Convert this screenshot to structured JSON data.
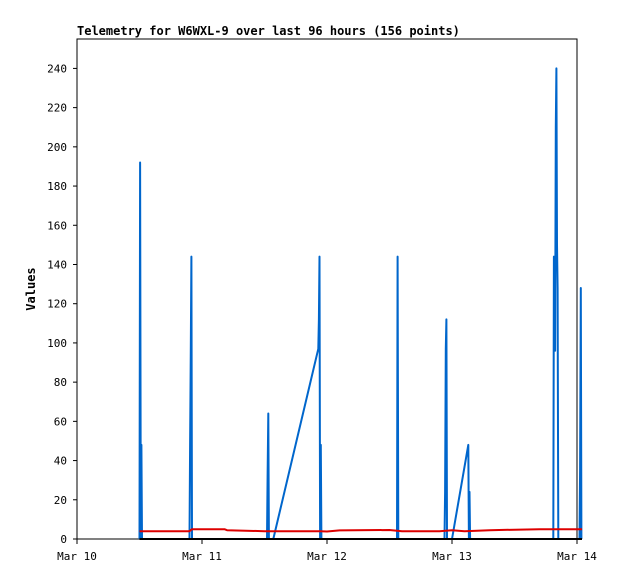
{
  "chart_data": {
    "type": "line",
    "title": "Telemetry for W6WXL-9 over last 96 hours (156 points)",
    "xlabel": "",
    "ylabel": "Values",
    "xlim": [
      0,
      4
    ],
    "ylim": [
      0,
      255
    ],
    "x_tick_values": [
      0,
      1,
      2,
      3,
      4
    ],
    "x_tick_labels": [
      "Mar 10",
      "Mar 11",
      "Mar 12",
      "Mar 13",
      "Mar 14"
    ],
    "y_ticks": [
      0,
      20,
      40,
      60,
      80,
      100,
      120,
      140,
      160,
      180,
      200,
      220,
      240
    ],
    "grid": false,
    "legend": "none",
    "series": [
      {
        "color": "#0066cc",
        "points": [
          [
            0.5,
            0
          ],
          [
            0.505,
            192
          ],
          [
            0.51,
            0
          ],
          [
            0.515,
            48
          ],
          [
            0.52,
            0
          ],
          [
            0.9,
            0
          ],
          [
            0.905,
            48
          ],
          [
            0.91,
            97
          ],
          [
            0.915,
            144
          ],
          [
            0.92,
            0
          ],
          [
            1.52,
            0
          ],
          [
            1.525,
            32
          ],
          [
            1.53,
            64
          ],
          [
            1.535,
            0
          ],
          [
            1.57,
            0
          ],
          [
            1.93,
            97
          ],
          [
            1.935,
            112
          ],
          [
            1.94,
            144
          ],
          [
            1.945,
            0
          ],
          [
            1.95,
            48
          ],
          [
            1.955,
            0
          ],
          [
            2.56,
            0
          ],
          [
            2.565,
            144
          ],
          [
            2.57,
            0
          ],
          [
            2.94,
            0
          ],
          [
            2.945,
            24
          ],
          [
            2.95,
            97
          ],
          [
            2.955,
            112
          ],
          [
            2.96,
            0
          ],
          [
            3.0,
            0
          ],
          [
            3.13,
            48
          ],
          [
            3.135,
            0
          ],
          [
            3.14,
            24
          ],
          [
            3.145,
            0
          ],
          [
            3.81,
            0
          ],
          [
            3.815,
            144
          ],
          [
            3.82,
            140
          ],
          [
            3.825,
            96
          ],
          [
            3.83,
            210
          ],
          [
            3.835,
            240
          ],
          [
            3.84,
            150
          ],
          [
            3.845,
            128
          ],
          [
            3.85,
            0
          ],
          [
            4.02,
            0
          ],
          [
            4.025,
            36
          ],
          [
            4.03,
            128
          ],
          [
            4.035,
            0
          ]
        ]
      },
      {
        "color": "#dd0000",
        "points": [
          [
            0.5,
            4
          ],
          [
            0.9,
            4
          ],
          [
            0.92,
            5
          ],
          [
            1.18,
            5
          ],
          [
            1.2,
            4.5
          ],
          [
            1.5,
            4
          ],
          [
            1.95,
            4
          ],
          [
            2.0,
            3.8
          ],
          [
            2.1,
            4.4
          ],
          [
            2.5,
            4.6
          ],
          [
            2.6,
            4
          ],
          [
            2.9,
            4
          ],
          [
            3.0,
            4.5
          ],
          [
            3.1,
            4
          ],
          [
            3.3,
            4.5
          ],
          [
            3.7,
            5
          ],
          [
            3.9,
            5
          ],
          [
            4.04,
            5
          ]
        ]
      },
      {
        "color": "#000000",
        "points": [
          [
            0.5,
            0
          ],
          [
            4.04,
            0
          ]
        ]
      }
    ]
  }
}
